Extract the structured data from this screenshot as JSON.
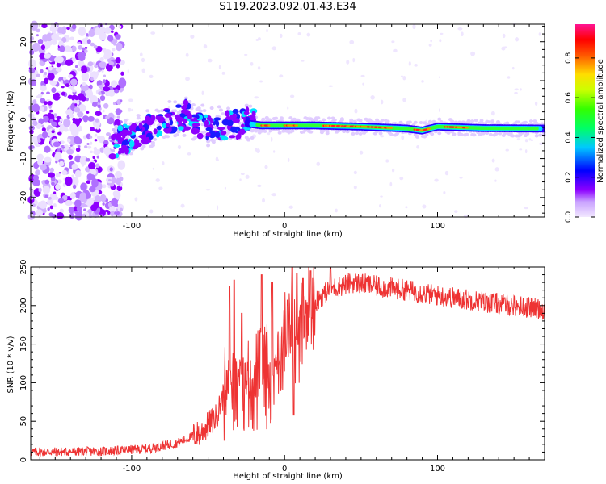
{
  "title": "S119.2023.092.01.43.E34",
  "chart_data": [
    {
      "type": "heatmap",
      "xlabel": "Height of straight line (km)",
      "ylabel": "Frequency (Hz)",
      "xlim": [
        -166,
        170
      ],
      "ylim": [
        -25,
        24.5
      ],
      "x_ticks": [
        -100,
        0,
        100
      ],
      "y_ticks": [
        -20,
        -10,
        0,
        10,
        20
      ],
      "colorbar": {
        "label": "Normalized spectral amplitude",
        "range": [
          0,
          0.97
        ],
        "ticks": [
          0.0,
          0.2,
          0.4,
          0.6,
          0.8
        ],
        "colormap": [
          "#e8ddff",
          "#8d00ff",
          "#0000ff",
          "#00ffff",
          "#00ff00",
          "#ffff00",
          "#ff8000",
          "#ff0000",
          "#ff1493"
        ]
      },
      "ridge": {
        "description_points": [
          {
            "x": -160,
            "y": -8
          },
          {
            "x": -130,
            "y": -7
          },
          {
            "x": -110,
            "y": -6
          },
          {
            "x": -95,
            "y": -3
          },
          {
            "x": -80,
            "y": -1
          },
          {
            "x": -65,
            "y": 1
          },
          {
            "x": -50,
            "y": -2
          },
          {
            "x": -35,
            "y": -1
          },
          {
            "x": -25,
            "y": -1
          },
          {
            "x": -15,
            "y": -1.5
          },
          {
            "x": 0,
            "y": -1.5
          },
          {
            "x": 20,
            "y": -1.5
          },
          {
            "x": 50,
            "y": -1.8
          },
          {
            "x": 80,
            "y": -2.3
          },
          {
            "x": 90,
            "y": -2.8
          },
          {
            "x": 100,
            "y": -1.8
          },
          {
            "x": 130,
            "y": -2.2
          },
          {
            "x": 170,
            "y": -2.3
          }
        ]
      }
    },
    {
      "type": "line",
      "xlabel": "Height of straight line (km)",
      "ylabel": "SNR (10 * v/v)",
      "xlim": [
        -166,
        170
      ],
      "ylim": [
        0,
        250
      ],
      "x_ticks": [
        -100,
        0,
        100
      ],
      "y_ticks": [
        0,
        50,
        100,
        150,
        200,
        250
      ],
      "color": "#ee3333",
      "envelope": [
        {
          "x": -166,
          "y": 10
        },
        {
          "x": -120,
          "y": 11
        },
        {
          "x": -90,
          "y": 14
        },
        {
          "x": -70,
          "y": 22
        },
        {
          "x": -55,
          "y": 35
        },
        {
          "x": -45,
          "y": 55
        },
        {
          "x": -38,
          "y": 95
        },
        {
          "x": -30,
          "y": 110
        },
        {
          "x": -20,
          "y": 100
        },
        {
          "x": -10,
          "y": 110
        },
        {
          "x": 0,
          "y": 155
        },
        {
          "x": 10,
          "y": 170
        },
        {
          "x": 20,
          "y": 205
        },
        {
          "x": 30,
          "y": 222
        },
        {
          "x": 45,
          "y": 230
        },
        {
          "x": 60,
          "y": 225
        },
        {
          "x": 80,
          "y": 220
        },
        {
          "x": 100,
          "y": 213
        },
        {
          "x": 130,
          "y": 205
        },
        {
          "x": 150,
          "y": 200
        },
        {
          "x": 170,
          "y": 195
        }
      ],
      "spikes": [
        {
          "x": -36,
          "y": 225
        },
        {
          "x": -33,
          "y": 233
        },
        {
          "x": -28,
          "y": 190
        },
        {
          "x": -15,
          "y": 240
        },
        {
          "x": -8,
          "y": 230
        },
        {
          "x": 5,
          "y": 280
        },
        {
          "x": 8,
          "y": 242
        },
        {
          "x": 12,
          "y": 235
        },
        {
          "x": 17,
          "y": 245
        },
        {
          "x": 30,
          "y": 255
        },
        {
          "x": 6,
          "y": 58
        }
      ]
    }
  ]
}
